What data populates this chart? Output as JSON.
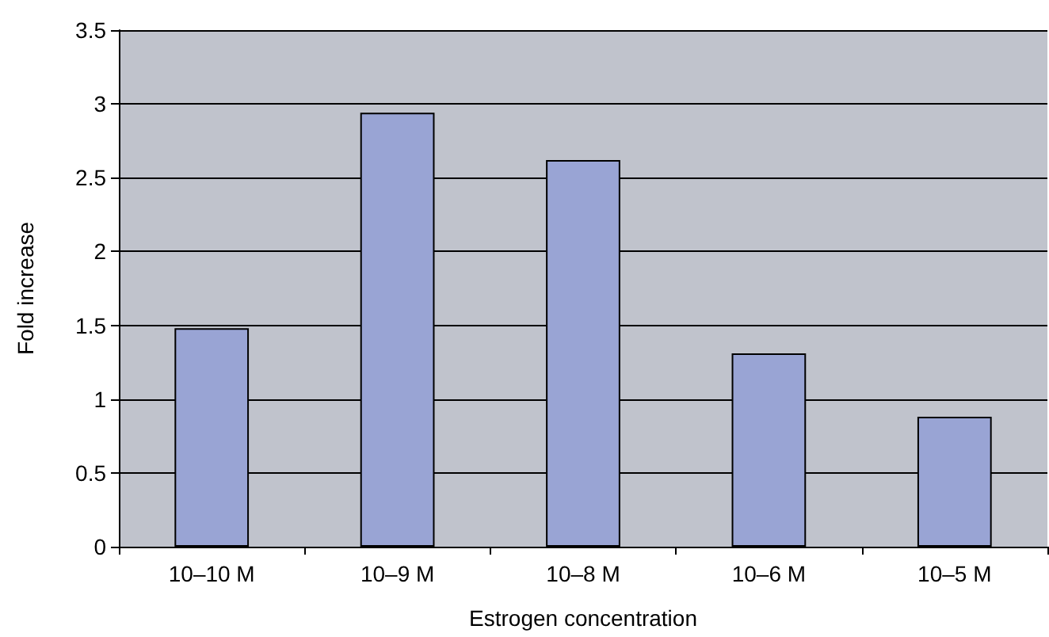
{
  "chart_data": {
    "type": "bar",
    "xlabel": "Estrogen concentration",
    "ylabel": "Fold increase",
    "categories": [
      "10–10 M",
      "10–9 M",
      "10–8 M",
      "10–6 M",
      "10–5 M"
    ],
    "values": [
      1.48,
      2.94,
      2.62,
      1.31,
      0.88
    ],
    "color": "#99a4d4",
    "ylim": [
      0,
      3.5
    ],
    "yticks": [
      0,
      0.5,
      1,
      1.5,
      2,
      2.5,
      3,
      3.5
    ],
    "grid": "y"
  }
}
